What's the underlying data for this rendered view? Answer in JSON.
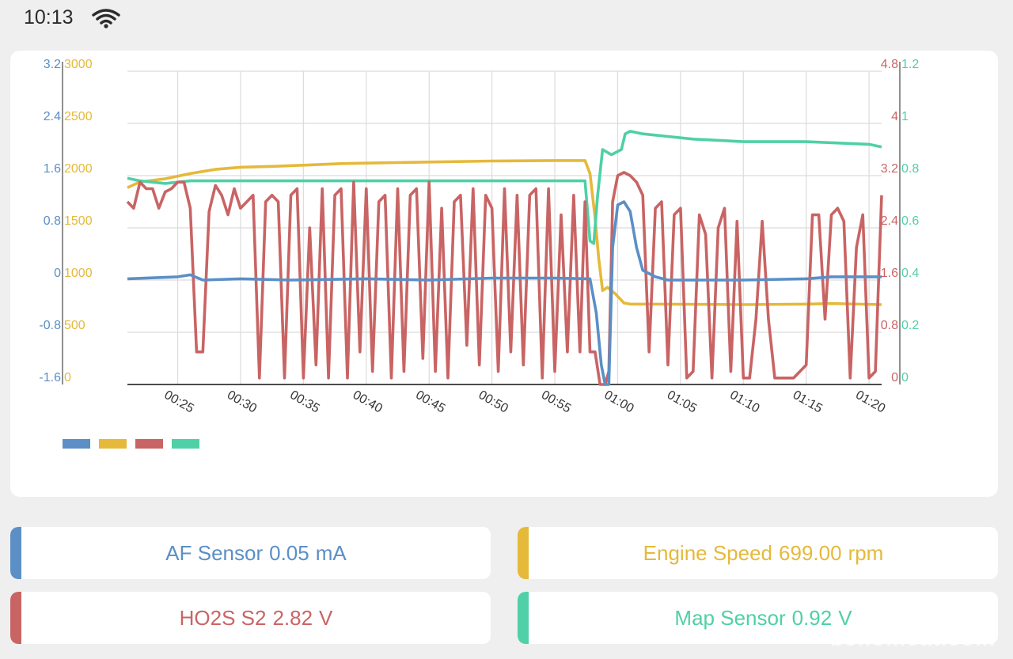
{
  "status_bar": {
    "time": "10:13",
    "wifi_icon": "wifi-icon"
  },
  "colors": {
    "af_sensor": "#5b8fc6",
    "engine_speed": "#e5b93a",
    "ho2s_s2": "#c96464",
    "map_sensor": "#4fd0a6",
    "grid": "#dcdcdc",
    "axis": "#555555"
  },
  "chart_data": {
    "type": "line",
    "grid": true,
    "legend": "bottom-left",
    "x": {
      "ticks": [
        "00:25",
        "00:30",
        "00:35",
        "00:40",
        "00:45",
        "00:50",
        "00:55",
        "01:00",
        "01:05",
        "01:10",
        "01:15",
        "01:20"
      ],
      "range_seconds": [
        21,
        81
      ]
    },
    "axes": {
      "af": {
        "side": "left-outer",
        "range": [
          -1.6,
          3.2
        ],
        "ticks": [
          "-1.6",
          "-0.8",
          "0",
          "0.8",
          "1.6",
          "2.4",
          "3.2"
        ]
      },
      "rpm": {
        "side": "left-inner",
        "range": [
          0,
          3000
        ],
        "ticks": [
          "0",
          "500",
          "1000",
          "1500",
          "2000",
          "2500",
          "3000"
        ]
      },
      "ho2s": {
        "side": "right-inner",
        "range": [
          0,
          4.8
        ],
        "ticks": [
          "0",
          "0.8",
          "1.6",
          "2.4",
          "3.2",
          "4",
          "4.8"
        ]
      },
      "map": {
        "side": "right-outer",
        "range": [
          0,
          1.2
        ],
        "ticks": [
          "0",
          "0.2",
          "0.4",
          "0.6",
          "0.8",
          "1",
          "1.2"
        ]
      }
    },
    "series": [
      {
        "axis": "af",
        "color": "#5b8fc6",
        "points": [
          [
            21,
            0.02
          ],
          [
            25,
            0.05
          ],
          [
            26,
            0.08
          ],
          [
            27,
            0.0
          ],
          [
            30,
            0.02
          ],
          [
            34,
            0.0
          ],
          [
            40,
            0.02
          ],
          [
            45,
            0.0
          ],
          [
            50,
            0.03
          ],
          [
            55,
            0.03
          ],
          [
            57.8,
            0.02
          ],
          [
            58.3,
            -0.5
          ],
          [
            58.7,
            -1.3
          ],
          [
            59,
            -1.6
          ],
          [
            59.3,
            -1.6
          ],
          [
            59.6,
            0.5
          ],
          [
            60,
            1.15
          ],
          [
            60.5,
            1.2
          ],
          [
            61,
            1.05
          ],
          [
            61.5,
            0.5
          ],
          [
            62,
            0.15
          ],
          [
            63,
            0.05
          ],
          [
            64,
            0.0
          ],
          [
            70,
            0.0
          ],
          [
            75,
            0.02
          ],
          [
            77,
            0.05
          ],
          [
            81,
            0.05
          ]
        ]
      },
      {
        "axis": "rpm",
        "color": "#e5b93a",
        "points": [
          [
            21,
            1885
          ],
          [
            22,
            1940
          ],
          [
            24,
            1970
          ],
          [
            26,
            2020
          ],
          [
            28,
            2060
          ],
          [
            30,
            2080
          ],
          [
            33,
            2090
          ],
          [
            35,
            2100
          ],
          [
            38,
            2115
          ],
          [
            40,
            2120
          ],
          [
            45,
            2130
          ],
          [
            50,
            2140
          ],
          [
            55,
            2145
          ],
          [
            57.4,
            2145
          ],
          [
            57.8,
            2020
          ],
          [
            58.2,
            1600
          ],
          [
            58.5,
            1200
          ],
          [
            58.8,
            900
          ],
          [
            59.2,
            930
          ],
          [
            59.8,
            870
          ],
          [
            60.5,
            780
          ],
          [
            61,
            770
          ],
          [
            63,
            770
          ],
          [
            70,
            765
          ],
          [
            75,
            770
          ],
          [
            77,
            775
          ],
          [
            81,
            765
          ]
        ]
      },
      {
        "axis": "ho2s",
        "color": "#c96464",
        "points": [
          [
            21,
            2.8
          ],
          [
            21.5,
            2.7
          ],
          [
            22,
            3.1
          ],
          [
            22.5,
            3.0
          ],
          [
            23,
            3.0
          ],
          [
            23.5,
            2.7
          ],
          [
            24,
            2.95
          ],
          [
            24.5,
            3.0
          ],
          [
            25,
            3.1
          ],
          [
            25.5,
            3.1
          ],
          [
            26,
            2.7
          ],
          [
            26.5,
            0.5
          ],
          [
            27,
            0.5
          ],
          [
            27.5,
            2.65
          ],
          [
            28,
            3.05
          ],
          [
            28.5,
            2.9
          ],
          [
            29,
            2.6
          ],
          [
            29.5,
            3.0
          ],
          [
            30,
            2.7
          ],
          [
            30.5,
            2.8
          ],
          [
            31,
            2.9
          ],
          [
            31.5,
            0.1
          ],
          [
            32,
            2.8
          ],
          [
            32.5,
            2.9
          ],
          [
            33,
            2.8
          ],
          [
            33.5,
            0.1
          ],
          [
            34,
            2.9
          ],
          [
            34.5,
            3.0
          ],
          [
            35,
            0.1
          ],
          [
            35.5,
            2.4
          ],
          [
            36,
            0.3
          ],
          [
            36.5,
            3.0
          ],
          [
            37,
            0.1
          ],
          [
            37.5,
            2.9
          ],
          [
            38,
            3.0
          ],
          [
            38.5,
            0.1
          ],
          [
            39,
            3.1
          ],
          [
            39.5,
            0.5
          ],
          [
            40,
            3.0
          ],
          [
            40.5,
            0.2
          ],
          [
            41,
            2.8
          ],
          [
            41.5,
            2.9
          ],
          [
            42,
            0.1
          ],
          [
            42.5,
            3.0
          ],
          [
            43,
            0.2
          ],
          [
            43.5,
            2.9
          ],
          [
            44,
            3.0
          ],
          [
            44.5,
            0.4
          ],
          [
            45,
            3.1
          ],
          [
            45.5,
            0.2
          ],
          [
            46,
            2.7
          ],
          [
            46.5,
            0.1
          ],
          [
            47,
            2.8
          ],
          [
            47.5,
            2.9
          ],
          [
            48,
            0.6
          ],
          [
            48.5,
            3.0
          ],
          [
            49,
            0.3
          ],
          [
            49.5,
            2.9
          ],
          [
            50,
            2.7
          ],
          [
            50.5,
            0.2
          ],
          [
            51,
            3.0
          ],
          [
            51.5,
            0.5
          ],
          [
            52,
            2.9
          ],
          [
            52.5,
            0.3
          ],
          [
            53,
            2.9
          ],
          [
            53.5,
            3.0
          ],
          [
            54,
            0.1
          ],
          [
            54.5,
            3.0
          ],
          [
            55,
            0.2
          ],
          [
            55.5,
            2.6
          ],
          [
            56,
            0.5
          ],
          [
            56.5,
            2.9
          ],
          [
            57,
            0.5
          ],
          [
            57.4,
            2.8
          ],
          [
            57.8,
            0.5
          ],
          [
            58.2,
            0.5
          ],
          [
            58.6,
            0.0
          ],
          [
            59,
            0.0
          ],
          [
            59.3,
            0.2
          ],
          [
            59.6,
            2.8
          ],
          [
            60,
            3.2
          ],
          [
            60.5,
            3.25
          ],
          [
            61,
            3.2
          ],
          [
            61.5,
            3.1
          ],
          [
            62,
            2.9
          ],
          [
            62.5,
            0.5
          ],
          [
            63,
            2.7
          ],
          [
            63.5,
            2.8
          ],
          [
            64,
            0.3
          ],
          [
            64.5,
            2.6
          ],
          [
            65,
            2.7
          ],
          [
            65.5,
            0.1
          ],
          [
            66,
            0.2
          ],
          [
            66.5,
            2.6
          ],
          [
            67,
            2.3
          ],
          [
            67.5,
            0.1
          ],
          [
            68,
            2.4
          ],
          [
            68.5,
            2.7
          ],
          [
            69,
            0.2
          ],
          [
            69.5,
            2.5
          ],
          [
            70,
            0.1
          ],
          [
            70.5,
            0.1
          ],
          [
            71,
            1.0
          ],
          [
            71.5,
            2.5
          ],
          [
            72,
            1.0
          ],
          [
            72.5,
            0.1
          ],
          [
            73,
            0.1
          ],
          [
            74,
            0.1
          ],
          [
            75,
            0.3
          ],
          [
            75.5,
            2.6
          ],
          [
            76,
            2.6
          ],
          [
            76.5,
            1.0
          ],
          [
            77,
            2.6
          ],
          [
            77.5,
            2.7
          ],
          [
            78,
            2.5
          ],
          [
            78.5,
            0.1
          ],
          [
            79,
            2.1
          ],
          [
            79.5,
            2.6
          ],
          [
            80,
            0.1
          ],
          [
            80.5,
            0.2
          ],
          [
            81,
            2.9
          ]
        ]
      },
      {
        "axis": "map",
        "color": "#4fd0a6",
        "points": [
          [
            21,
            0.79
          ],
          [
            22,
            0.78
          ],
          [
            24,
            0.77
          ],
          [
            26,
            0.78
          ],
          [
            30,
            0.78
          ],
          [
            35,
            0.78
          ],
          [
            40,
            0.78
          ],
          [
            45,
            0.78
          ],
          [
            50,
            0.78
          ],
          [
            55,
            0.78
          ],
          [
            57.4,
            0.78
          ],
          [
            57.8,
            0.55
          ],
          [
            58.1,
            0.54
          ],
          [
            58.4,
            0.72
          ],
          [
            58.8,
            0.9
          ],
          [
            59.5,
            0.88
          ],
          [
            60.3,
            0.9
          ],
          [
            60.6,
            0.96
          ],
          [
            61,
            0.97
          ],
          [
            62,
            0.96
          ],
          [
            64,
            0.95
          ],
          [
            66,
            0.94
          ],
          [
            70,
            0.93
          ],
          [
            75,
            0.93
          ],
          [
            80,
            0.92
          ],
          [
            81,
            0.91
          ]
        ]
      }
    ]
  },
  "sensors": {
    "af": {
      "name": "AF Sensor",
      "value": "0.05",
      "unit": "mA"
    },
    "rpm": {
      "name": "Engine Speed",
      "value": "699.00",
      "unit": "rpm"
    },
    "ho2s": {
      "name": "HO2S S2",
      "value": "2.82",
      "unit": "V"
    },
    "map": {
      "name": "Map Sensor",
      "value": "0.92",
      "unit": "V"
    }
  },
  "watermark": "bellomeat.com"
}
